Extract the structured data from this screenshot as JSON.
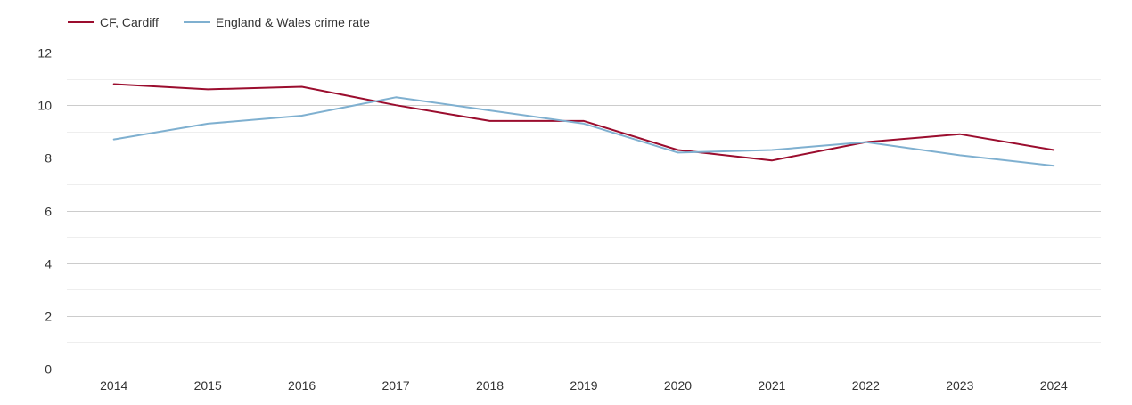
{
  "chart_data": {
    "type": "line",
    "title": "",
    "xlabel": "",
    "ylabel": "",
    "x": [
      "2014",
      "2015",
      "2016",
      "2017",
      "2018",
      "2019",
      "2020",
      "2021",
      "2022",
      "2023",
      "2024"
    ],
    "ylim": [
      0,
      12
    ],
    "yticks": [
      0,
      2,
      4,
      6,
      8,
      10,
      12
    ],
    "grid": true,
    "legend_position": "top-left",
    "series": [
      {
        "name": "CF, Cardiff",
        "color": "#9b0d2e",
        "values": [
          10.8,
          10.6,
          10.7,
          10.0,
          9.4,
          9.4,
          8.3,
          7.9,
          8.6,
          8.9,
          8.3
        ]
      },
      {
        "name": "England & Wales crime rate",
        "color": "#7fb0d0",
        "values": [
          8.7,
          9.3,
          9.6,
          10.3,
          9.8,
          9.3,
          8.2,
          8.3,
          8.6,
          8.1,
          7.7
        ]
      }
    ]
  }
}
